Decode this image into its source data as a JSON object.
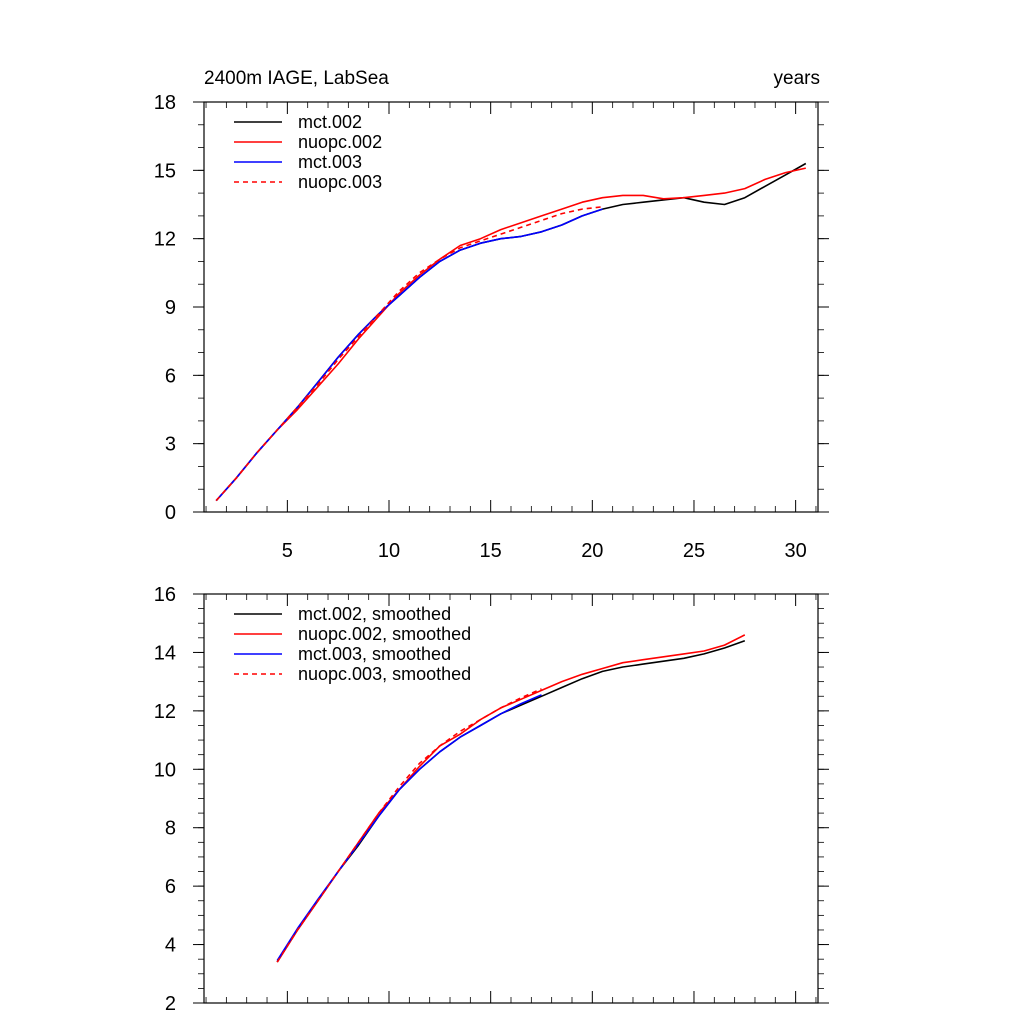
{
  "chart_data": [
    {
      "type": "line",
      "title": "2400m IAGE, LabSea",
      "units": "years",
      "xlabel": "",
      "ylabel": "",
      "xlim": [
        0.9,
        31.1
      ],
      "ylim": [
        0,
        18
      ],
      "xticks": [
        5,
        10,
        15,
        20,
        25,
        30
      ],
      "yticks": [
        0,
        3,
        6,
        9,
        12,
        15,
        18
      ],
      "x_tick_labels_shown": true,
      "grid": false,
      "legend_position": "top-left",
      "series": [
        {
          "name": "mct.002",
          "color": "#000000",
          "dash": "solid",
          "x": [
            1.5,
            2.5,
            3.5,
            4.5,
            5.5,
            6.5,
            7.5,
            8.5,
            9.5,
            10.5,
            11.5,
            12.5,
            13.5,
            14.5,
            15.5,
            16.5,
            17.5,
            18.5,
            19.5,
            20.5,
            21.5,
            22.5,
            23.5,
            24.5,
            25.5,
            26.5,
            27.5,
            28.5,
            29.5,
            30.5
          ],
          "y": [
            0.5,
            1.5,
            2.6,
            3.6,
            4.6,
            5.7,
            6.8,
            7.8,
            8.7,
            9.5,
            10.3,
            11.0,
            11.5,
            11.8,
            12.0,
            12.1,
            12.3,
            12.6,
            13.0,
            13.3,
            13.5,
            13.6,
            13.7,
            13.8,
            13.6,
            13.5,
            13.8,
            14.3,
            14.8,
            15.3
          ]
        },
        {
          "name": "nuopc.002",
          "color": "#ff0000",
          "dash": "solid",
          "x": [
            1.5,
            2.5,
            3.5,
            4.5,
            5.5,
            6.5,
            7.5,
            8.5,
            9.5,
            10.5,
            11.5,
            12.5,
            13.5,
            14.5,
            15.5,
            16.5,
            17.5,
            18.5,
            19.5,
            20.5,
            21.5,
            22.5,
            23.5,
            24.5,
            25.5,
            26.5,
            27.5,
            28.5,
            29.5,
            30.5
          ],
          "y": [
            0.5,
            1.5,
            2.6,
            3.6,
            4.5,
            5.5,
            6.5,
            7.6,
            8.6,
            9.6,
            10.4,
            11.1,
            11.7,
            12.0,
            12.4,
            12.7,
            13.0,
            13.3,
            13.6,
            13.8,
            13.9,
            13.9,
            13.75,
            13.8,
            13.9,
            14.0,
            14.2,
            14.6,
            14.9,
            15.1
          ]
        },
        {
          "name": "mct.003",
          "color": "#0000ff",
          "dash": "solid",
          "x": [
            1.5,
            2.5,
            3.5,
            4.5,
            5.5,
            6.5,
            7.5,
            8.5,
            9.5,
            10.5,
            11.5,
            12.5,
            13.5,
            14.5,
            15.5,
            16.5,
            17.5,
            18.5,
            19.5,
            20.5
          ],
          "y": [
            0.5,
            1.5,
            2.6,
            3.6,
            4.6,
            5.7,
            6.8,
            7.8,
            8.7,
            9.5,
            10.3,
            11.0,
            11.5,
            11.8,
            12.0,
            12.1,
            12.3,
            12.6,
            13.0,
            13.3
          ]
        },
        {
          "name": "nuopc.003",
          "color": "#ff0000",
          "dash": "dashed",
          "x": [
            1.5,
            2.5,
            3.5,
            4.5,
            5.5,
            6.5,
            7.5,
            8.5,
            9.5,
            10.5,
            11.5,
            12.5,
            13.5,
            14.5,
            15.5,
            16.5,
            17.5,
            18.5,
            19.5,
            20.5
          ],
          "y": [
            0.5,
            1.5,
            2.6,
            3.6,
            4.6,
            5.6,
            6.7,
            7.7,
            8.7,
            9.7,
            10.5,
            11.1,
            11.6,
            11.9,
            12.2,
            12.5,
            12.8,
            13.1,
            13.3,
            13.4
          ]
        }
      ]
    },
    {
      "type": "line",
      "title": "",
      "xlabel": "",
      "ylabel": "",
      "xlim": [
        0.9,
        31.1
      ],
      "ylim": [
        2,
        16
      ],
      "xticks": [
        5,
        10,
        15,
        20,
        25,
        30
      ],
      "yticks": [
        2,
        4,
        6,
        8,
        10,
        12,
        14,
        16
      ],
      "x_tick_labels_shown": false,
      "grid": false,
      "legend_position": "top-left",
      "series": [
        {
          "name": "mct.002, smoothed",
          "color": "#000000",
          "dash": "solid",
          "x": [
            4.5,
            5.5,
            6.5,
            7.5,
            8.5,
            9.5,
            10.5,
            11.5,
            12.5,
            13.5,
            14.5,
            15.5,
            16.5,
            17.5,
            18.5,
            19.5,
            20.5,
            21.5,
            22.5,
            23.5,
            24.5,
            25.5,
            26.5,
            27.5
          ],
          "y": [
            3.4,
            4.5,
            5.5,
            6.5,
            7.4,
            8.4,
            9.3,
            10.0,
            10.6,
            11.1,
            11.5,
            11.9,
            12.2,
            12.5,
            12.8,
            13.1,
            13.35,
            13.5,
            13.6,
            13.7,
            13.8,
            13.95,
            14.15,
            14.4
          ]
        },
        {
          "name": "nuopc.002, smoothed",
          "color": "#ff0000",
          "dash": "solid",
          "x": [
            4.5,
            5.5,
            6.5,
            7.5,
            8.5,
            9.5,
            10.5,
            11.5,
            12.5,
            13.5,
            14.5,
            15.5,
            16.5,
            17.5,
            18.5,
            19.5,
            20.5,
            21.5,
            22.5,
            23.5,
            24.5,
            25.5,
            26.5,
            27.5
          ],
          "y": [
            3.4,
            4.5,
            5.5,
            6.5,
            7.5,
            8.5,
            9.3,
            10.1,
            10.8,
            11.2,
            11.7,
            12.1,
            12.4,
            12.7,
            13.0,
            13.25,
            13.45,
            13.65,
            13.75,
            13.85,
            13.95,
            14.05,
            14.25,
            14.6
          ]
        },
        {
          "name": "mct.003, smoothed",
          "color": "#0000ff",
          "dash": "solid",
          "x": [
            4.5,
            5.5,
            6.5,
            7.5,
            8.5,
            9.5,
            10.5,
            11.5,
            12.5,
            13.5,
            14.5,
            15.5,
            16.5,
            17.5
          ],
          "y": [
            3.45,
            4.55,
            5.55,
            6.5,
            7.45,
            8.4,
            9.3,
            10.0,
            10.6,
            11.1,
            11.5,
            11.9,
            12.25,
            12.55
          ]
        },
        {
          "name": "nuopc.003, smoothed",
          "color": "#ff0000",
          "dash": "dashed",
          "x": [
            4.5,
            5.5,
            6.5,
            7.5,
            8.5,
            9.5,
            10.5,
            11.5,
            12.5,
            13.5,
            14.5,
            15.5,
            16.5,
            17.5
          ],
          "y": [
            3.4,
            4.5,
            5.5,
            6.5,
            7.5,
            8.5,
            9.4,
            10.2,
            10.8,
            11.3,
            11.7,
            12.1,
            12.45,
            12.75
          ]
        }
      ]
    }
  ]
}
